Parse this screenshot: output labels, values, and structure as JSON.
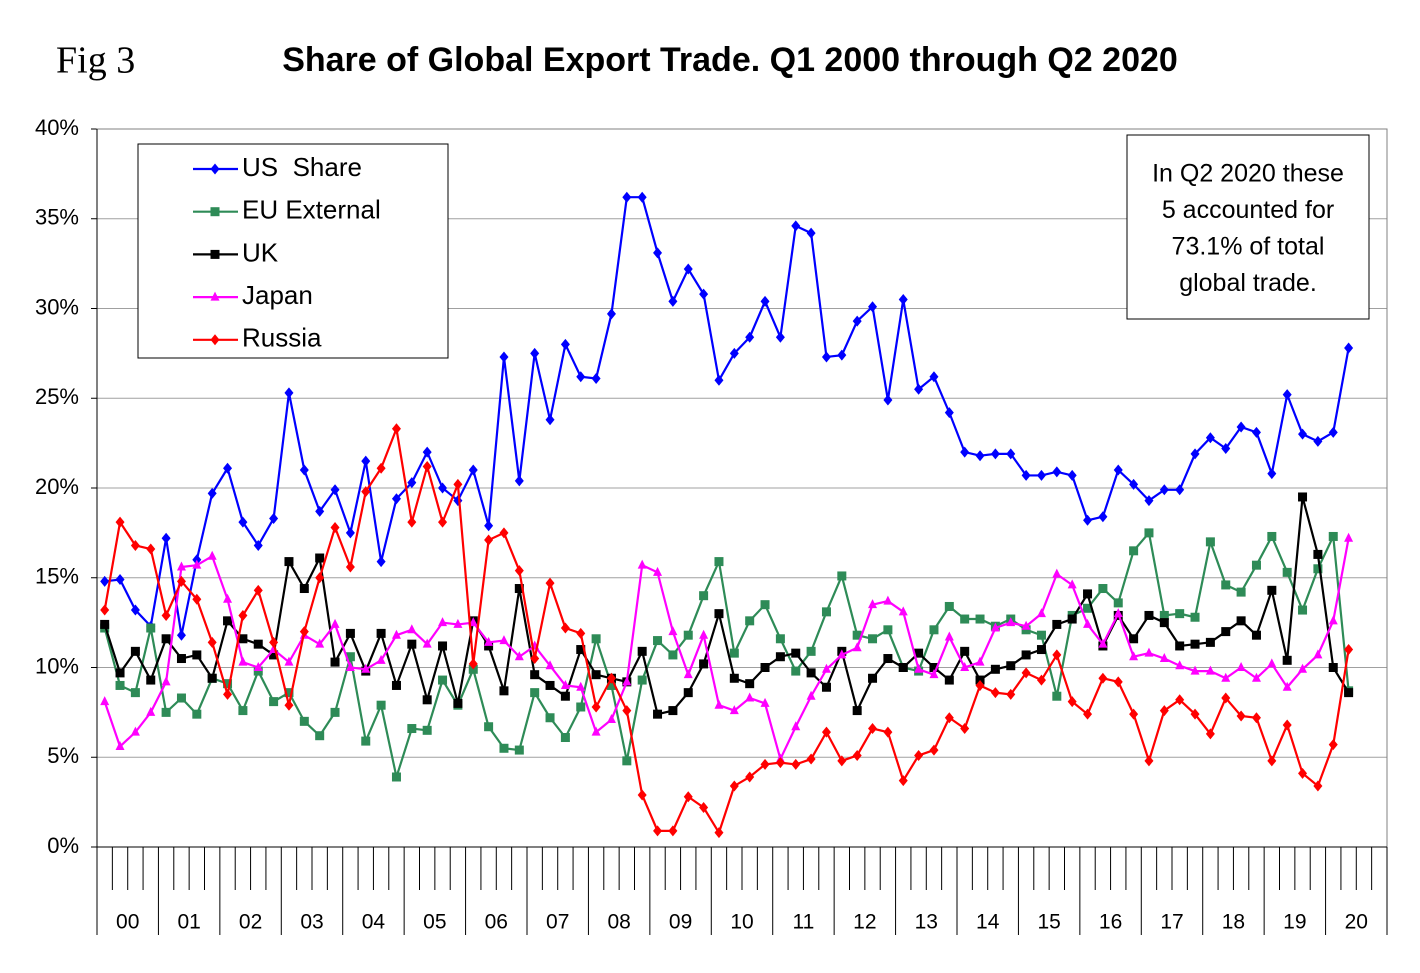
{
  "chart_data": {
    "type": "line",
    "fig_label": "Fig 3",
    "title": "Share of Global Export Trade. Q1 2000 through Q2 2020",
    "annotation": [
      "In Q2 2020 these",
      "5 accounted for",
      "73.1% of total",
      "global trade."
    ],
    "categories": [
      "00",
      null,
      null,
      null,
      "01",
      null,
      null,
      null,
      "02",
      null,
      null,
      null,
      "03",
      null,
      null,
      null,
      "04",
      null,
      null,
      null,
      "05",
      null,
      null,
      null,
      "06",
      null,
      null,
      null,
      "07",
      null,
      null,
      null,
      "08",
      null,
      null,
      null,
      "09",
      null,
      null,
      null,
      "10",
      null,
      null,
      null,
      "11",
      null,
      null,
      null,
      "12",
      null,
      null,
      null,
      "13",
      null,
      null,
      null,
      "14",
      null,
      null,
      null,
      "15",
      null,
      null,
      null,
      "16",
      null,
      null,
      null,
      "17",
      null,
      null,
      null,
      "18",
      null,
      null,
      null,
      "19",
      null,
      null,
      null,
      "20",
      null,
      null,
      null
    ],
    "ylim": [
      0,
      40
    ],
    "yticks": [
      {
        "value": 0,
        "label": "0%"
      },
      {
        "value": 5,
        "label": "5%"
      },
      {
        "value": 10,
        "label": "10%"
      },
      {
        "value": 15,
        "label": "15%"
      },
      {
        "value": 20,
        "label": "20%"
      },
      {
        "value": 25,
        "label": "25%"
      },
      {
        "value": 30,
        "label": "30%"
      },
      {
        "value": 35,
        "label": "35%"
      },
      {
        "value": 40,
        "label": "40%"
      }
    ],
    "grid": true,
    "legend": "upper left",
    "series": [
      {
        "name": "US  Share",
        "color": "#0000ff",
        "marker": "diamond",
        "values": [
          14.8,
          14.9,
          13.2,
          12.3,
          17.2,
          11.8,
          16.0,
          19.7,
          21.1,
          18.1,
          16.8,
          18.3,
          25.3,
          21.0,
          18.7,
          19.9,
          17.5,
          21.5,
          15.9,
          19.4,
          20.3,
          22.0,
          20.0,
          19.3,
          21.0,
          17.9,
          27.3,
          20.4,
          27.5,
          23.8,
          28.0,
          26.2,
          26.1,
          29.7,
          36.2,
          36.2,
          33.1,
          30.4,
          32.2,
          30.8,
          26.0,
          27.5,
          28.4,
          30.4,
          28.4,
          34.6,
          34.2,
          27.3,
          27.4,
          29.3,
          30.1,
          24.9,
          30.5,
          25.5,
          26.2,
          24.2,
          22.0,
          21.8,
          21.9,
          21.9,
          20.7,
          20.7,
          20.9,
          20.7,
          18.2,
          18.4,
          21.0,
          20.2,
          19.3,
          19.9,
          19.9,
          21.9,
          22.8,
          22.2,
          23.4,
          23.1,
          20.8,
          25.2,
          23.0,
          22.6,
          23.1,
          27.8,
          null,
          null
        ]
      },
      {
        "name": "EU External",
        "color": "#2e8b57",
        "marker": "square",
        "values": [
          12.2,
          9.0,
          8.6,
          12.2,
          7.5,
          8.3,
          7.4,
          9.4,
          9.1,
          7.6,
          9.8,
          8.1,
          8.6,
          7.0,
          6.2,
          7.5,
          10.6,
          5.9,
          7.9,
          3.9,
          6.6,
          6.5,
          9.3,
          7.9,
          9.9,
          6.7,
          5.5,
          5.4,
          8.6,
          7.2,
          6.1,
          7.8,
          11.6,
          9.0,
          4.8,
          9.3,
          11.5,
          10.7,
          11.8,
          14.0,
          15.9,
          10.8,
          12.6,
          13.5,
          11.6,
          9.8,
          10.9,
          13.1,
          15.1,
          11.8,
          11.6,
          12.1,
          10.0,
          9.8,
          12.1,
          13.4,
          12.7,
          12.7,
          12.3,
          12.7,
          12.1,
          11.8,
          8.4,
          12.9,
          13.3,
          14.4,
          13.6,
          16.5,
          17.5,
          12.9,
          13.0,
          12.8,
          17.0,
          14.6,
          14.2,
          15.7,
          17.3,
          15.3,
          13.2,
          15.5,
          17.3,
          8.7,
          null,
          null
        ]
      },
      {
        "name": "UK",
        "color": "#000000",
        "marker": "square",
        "values": [
          12.4,
          9.7,
          10.9,
          9.3,
          11.6,
          10.5,
          10.7,
          9.4,
          12.6,
          11.6,
          11.3,
          10.7,
          15.9,
          14.4,
          16.1,
          10.3,
          11.9,
          9.8,
          11.9,
          9.0,
          11.3,
          8.2,
          11.2,
          8.0,
          12.6,
          11.2,
          8.7,
          14.4,
          9.6,
          9.0,
          8.4,
          11.0,
          9.6,
          9.4,
          9.2,
          10.9,
          7.4,
          7.6,
          8.6,
          10.2,
          13.0,
          9.4,
          9.1,
          10.0,
          10.6,
          10.8,
          9.7,
          8.9,
          10.9,
          7.6,
          9.4,
          10.5,
          10.0,
          10.8,
          10.0,
          9.3,
          10.9,
          9.3,
          9.9,
          10.1,
          10.7,
          11.0,
          12.4,
          12.7,
          14.1,
          11.2,
          12.9,
          11.6,
          12.9,
          12.5,
          11.2,
          11.3,
          11.4,
          12.0,
          12.6,
          11.8,
          14.3,
          10.4,
          19.5,
          16.3,
          10.0,
          8.6,
          null,
          null
        ]
      },
      {
        "name": "Japan",
        "color": "#ff00ff",
        "marker": "triangle",
        "values": [
          8.1,
          5.6,
          6.4,
          7.5,
          9.2,
          15.6,
          15.7,
          16.2,
          13.8,
          10.3,
          10.0,
          11.0,
          10.3,
          11.8,
          11.3,
          12.4,
          10.0,
          9.9,
          10.4,
          11.8,
          12.1,
          11.3,
          12.5,
          12.4,
          12.5,
          11.4,
          11.5,
          10.6,
          11.2,
          10.1,
          9.0,
          8.9,
          6.4,
          7.1,
          9.2,
          15.7,
          15.3,
          12.0,
          9.6,
          11.8,
          7.9,
          7.6,
          8.3,
          8.0,
          4.9,
          6.7,
          8.4,
          9.9,
          10.7,
          11.1,
          13.5,
          13.7,
          13.1,
          9.9,
          9.6,
          11.7,
          10.0,
          10.3,
          12.2,
          12.5,
          12.3,
          13.0,
          15.2,
          14.6,
          12.4,
          11.3,
          13.0,
          10.6,
          10.8,
          10.5,
          10.1,
          9.8,
          9.8,
          9.4,
          10.0,
          9.4,
          10.2,
          8.9,
          9.9,
          10.7,
          12.6,
          17.2,
          null,
          null
        ]
      },
      {
        "name": "Russia",
        "color": "#ff0000",
        "marker": "diamond",
        "values": [
          13.2,
          18.1,
          16.8,
          16.6,
          12.9,
          14.8,
          13.8,
          11.4,
          8.5,
          12.9,
          14.3,
          11.4,
          7.9,
          12.0,
          15.0,
          17.8,
          15.6,
          19.8,
          21.1,
          23.3,
          18.1,
          21.2,
          18.1,
          20.2,
          10.2,
          17.1,
          17.5,
          15.4,
          10.5,
          14.7,
          12.2,
          11.9,
          7.8,
          9.4,
          7.6,
          2.9,
          0.9,
          0.9,
          2.8,
          2.2,
          0.8,
          3.4,
          3.9,
          4.6,
          4.7,
          4.6,
          4.9,
          6.4,
          4.8,
          5.1,
          6.6,
          6.4,
          3.7,
          5.1,
          5.4,
          7.2,
          6.6,
          9.0,
          8.6,
          8.5,
          9.7,
          9.3,
          10.7,
          8.1,
          7.4,
          9.4,
          9.2,
          7.4,
          4.8,
          7.6,
          8.2,
          7.4,
          6.3,
          8.3,
          7.3,
          7.2,
          4.8,
          6.8,
          4.1,
          3.4,
          5.7,
          11.0,
          null,
          null
        ]
      }
    ]
  }
}
